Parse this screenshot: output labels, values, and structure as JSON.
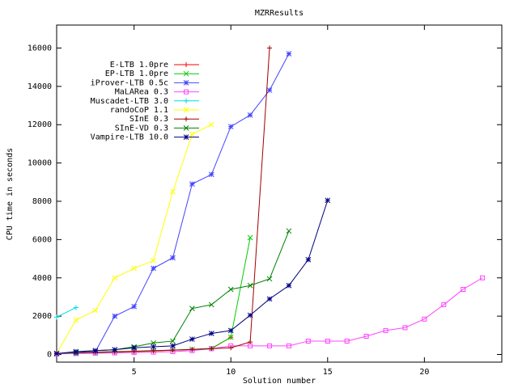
{
  "chart_data": {
    "type": "line",
    "title": "MZRResults",
    "x_label": "Solution number",
    "y_label": "CPU time in seconds",
    "xlim": [
      1,
      24
    ],
    "ylim": [
      -400,
      17200
    ],
    "xticks": [
      5,
      10,
      15,
      20
    ],
    "yticks": [
      0,
      2000,
      4000,
      6000,
      8000,
      10000,
      12000,
      14000,
      16000
    ],
    "legend": "top-left",
    "series": [
      {
        "name": "E-LTB 1.0pre",
        "color": "#ff0000",
        "marker": "plus",
        "x": [
          1,
          2,
          3,
          4,
          5,
          6,
          7,
          8,
          9,
          10
        ],
        "values": [
          50,
          80,
          100,
          120,
          150,
          180,
          220,
          260,
          300,
          900
        ]
      },
      {
        "name": "EP-LTB 1.0pre",
        "color": "#00cc00",
        "marker": "cross",
        "x": [
          1,
          2,
          3,
          4,
          5,
          6,
          7,
          8,
          9,
          10,
          11
        ],
        "values": [
          50,
          80,
          100,
          130,
          160,
          190,
          230,
          270,
          320,
          900,
          6100
        ]
      },
      {
        "name": "iProver-LTB 0.5c",
        "color": "#4444ff",
        "marker": "star",
        "x": [
          1,
          2,
          3,
          4,
          5,
          6,
          7,
          8,
          9,
          10,
          11,
          12,
          13
        ],
        "values": [
          50,
          50,
          150,
          2000,
          2500,
          4500,
          5050,
          8900,
          9400,
          11900,
          12500,
          13800,
          15700
        ]
      },
      {
        "name": "MaLARea 0.3",
        "color": "#ff44ff",
        "marker": "square",
        "x": [
          1,
          2,
          3,
          4,
          5,
          6,
          7,
          8,
          9,
          10,
          11,
          12,
          13,
          14,
          15,
          16,
          17,
          18,
          19,
          20,
          21,
          22,
          23
        ],
        "values": [
          30,
          50,
          60,
          80,
          100,
          120,
          150,
          200,
          300,
          450,
          450,
          450,
          450,
          700,
          700,
          700,
          950,
          1250,
          1400,
          1850,
          2600,
          3400,
          4000
        ]
      },
      {
        "name": "Muscadet-LTB 3.0",
        "color": "#00dddd",
        "marker": "plus",
        "x": [
          1,
          2
        ],
        "values": [
          1950,
          2450
        ]
      },
      {
        "name": "randoCoP 1.1",
        "color": "#ffff00",
        "marker": "cross",
        "x": [
          1,
          2,
          3,
          4,
          5,
          6,
          7,
          8,
          9
        ],
        "values": [
          50,
          1800,
          2300,
          4000,
          4500,
          4900,
          8500,
          11500,
          12000
        ]
      },
      {
        "name": "SInE 0.3",
        "color": "#a00000",
        "marker": "plus",
        "x": [
          1,
          2,
          3,
          4,
          5,
          6,
          7,
          8,
          9,
          10,
          11,
          12
        ],
        "values": [
          50,
          100,
          120,
          150,
          170,
          200,
          230,
          260,
          300,
          350,
          650,
          16000
        ]
      },
      {
        "name": "SInE-VD 0.3",
        "color": "#008000",
        "marker": "cross",
        "x": [
          1,
          2,
          3,
          4,
          5,
          6,
          7,
          8,
          9,
          10,
          11,
          12,
          13
        ],
        "values": [
          50,
          100,
          200,
          250,
          400,
          600,
          700,
          2400,
          2600,
          3400,
          3600,
          3950,
          6450
        ]
      },
      {
        "name": "Vampire-LTB 10.0",
        "color": "#000080",
        "marker": "star",
        "x": [
          1,
          2,
          3,
          4,
          5,
          6,
          7,
          8,
          9,
          10,
          11,
          12,
          13,
          14,
          15
        ],
        "values": [
          50,
          150,
          200,
          250,
          350,
          400,
          450,
          800,
          1100,
          1250,
          2050,
          2900,
          3600,
          4950,
          8050
        ]
      }
    ]
  }
}
